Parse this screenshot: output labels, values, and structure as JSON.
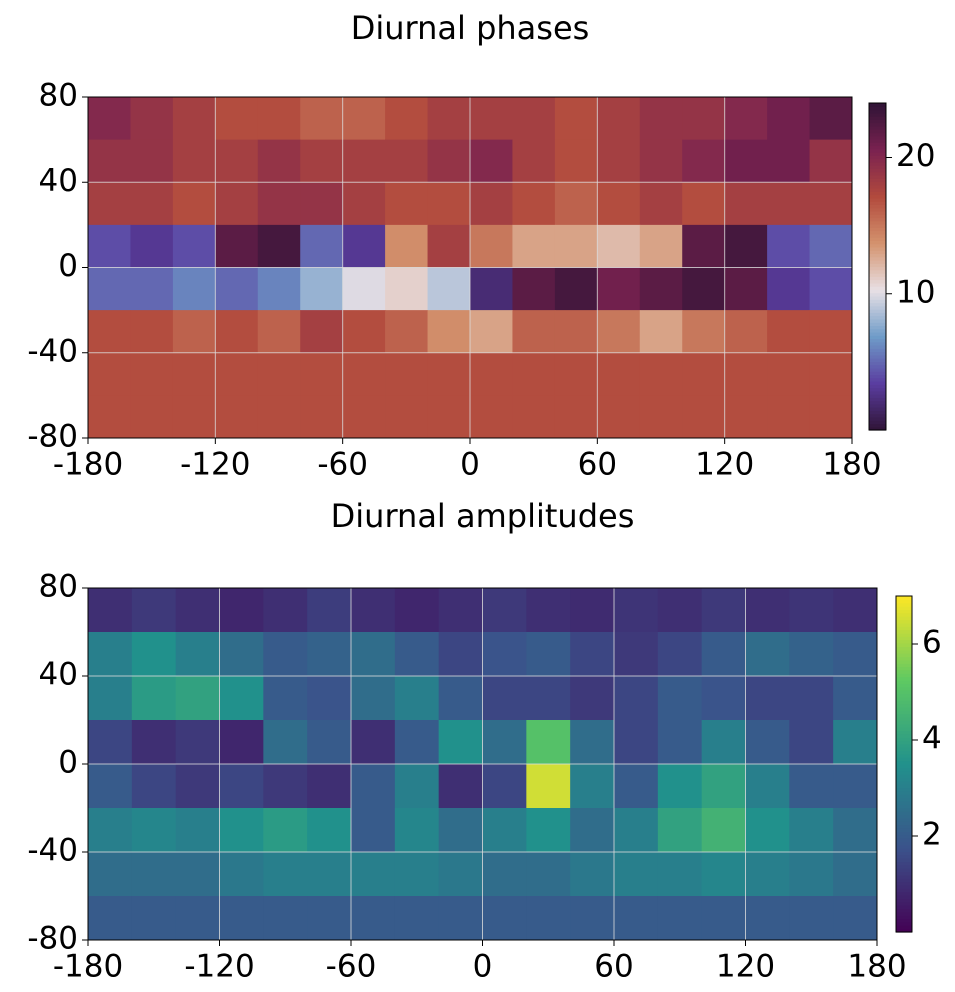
{
  "chart_data": [
    {
      "type": "heatmap",
      "title": "Diurnal phases",
      "xlim": [
        -180,
        180
      ],
      "ylim": [
        -80,
        80
      ],
      "xticks": [
        -180,
        -120,
        -60,
        0,
        60,
        120,
        180
      ],
      "yticks": [
        -80,
        -40,
        0,
        40,
        80
      ],
      "grid": true,
      "clim": [
        0,
        24
      ],
      "cbar_ticks": [
        10,
        20
      ],
      "colormap": [
        "#2f1436",
        "#5a3da0",
        "#6e9bc8",
        "#e8e0e5",
        "#d4936e",
        "#b24a3d",
        "#7a2250",
        "#2f1436"
      ],
      "z": [
        [
          20,
          19,
          18,
          17,
          17,
          16,
          16,
          17,
          18,
          18,
          18,
          17,
          18,
          19,
          19,
          20,
          21,
          22
        ],
        [
          19,
          19,
          18,
          18,
          19,
          18,
          18,
          18,
          19,
          20,
          18,
          17,
          18,
          19,
          20,
          21,
          21,
          19
        ],
        [
          18,
          18,
          17,
          18,
          19,
          19,
          18,
          17,
          17,
          18,
          17,
          16,
          17,
          18,
          17,
          18,
          18,
          18
        ],
        [
          4,
          3,
          4,
          22,
          23,
          5,
          3,
          14,
          18,
          15,
          13,
          13,
          12,
          13,
          22,
          23,
          4,
          5
        ],
        [
          5,
          5,
          6,
          5,
          6,
          8,
          10,
          11,
          9,
          2,
          22,
          23,
          21,
          22,
          23,
          22,
          3,
          4
        ],
        [
          17,
          17,
          16,
          17,
          16,
          18,
          17,
          16,
          14,
          13,
          16,
          16,
          15,
          13,
          15,
          16,
          17,
          17
        ],
        [
          17,
          17,
          17,
          17,
          17,
          17,
          17,
          17,
          17,
          17,
          17,
          17,
          17,
          17,
          17,
          17,
          17,
          17
        ],
        [
          17,
          17,
          17,
          17,
          17,
          17,
          17,
          17,
          17,
          17,
          17,
          17,
          17,
          17,
          17,
          17,
          17,
          17
        ]
      ]
    },
    {
      "type": "heatmap",
      "title": "Diurnal amplitudes",
      "xlim": [
        -180,
        180
      ],
      "ylim": [
        -80,
        80
      ],
      "xticks": [
        -180,
        -120,
        -60,
        0,
        60,
        120,
        180
      ],
      "yticks": [
        -80,
        -40,
        0,
        40,
        80
      ],
      "grid": true,
      "clim": [
        0,
        7
      ],
      "cbar_ticks": [
        2,
        4,
        6
      ],
      "colormap": [
        "#440154",
        "#3b528b",
        "#21918c",
        "#5ec962",
        "#fde725"
      ],
      "z": [
        [
          1,
          1.2,
          1,
          0.8,
          1,
          1.3,
          1,
          0.8,
          1,
          1.2,
          1,
          0.9,
          1.1,
          1,
          1.2,
          1,
          1.1,
          1
        ],
        [
          3,
          3.5,
          3,
          2.5,
          2,
          2.2,
          2.5,
          2,
          1.5,
          1.8,
          2,
          1.5,
          1.2,
          1.5,
          2,
          2.5,
          2.2,
          2
        ],
        [
          3,
          3.8,
          4,
          3.5,
          2,
          1.8,
          2.5,
          3,
          2,
          1.5,
          1.5,
          1.2,
          1.5,
          2,
          1.8,
          1.5,
          1.5,
          2
        ],
        [
          1.5,
          1,
          1.2,
          0.8,
          2.5,
          2,
          1,
          2,
          3.5,
          2.5,
          5,
          2.5,
          1.5,
          2,
          3,
          2,
          1.5,
          3
        ],
        [
          2,
          1.5,
          1.2,
          1.5,
          1.2,
          1,
          2,
          3,
          1,
          1.5,
          6.5,
          3,
          2,
          3.5,
          4,
          3,
          2,
          2
        ],
        [
          3,
          3.2,
          3,
          3.5,
          3.8,
          3.5,
          2,
          3.2,
          2.5,
          3,
          3.5,
          2.5,
          3,
          4,
          4.5,
          3.5,
          3,
          2.5
        ],
        [
          2.5,
          2.5,
          2.5,
          2.8,
          3,
          3,
          3,
          3,
          2.8,
          2.5,
          2.5,
          2.8,
          3,
          3,
          3.2,
          3,
          2.8,
          2.5
        ],
        [
          2,
          2,
          2,
          2,
          2,
          2,
          2,
          2,
          2,
          2,
          2,
          2,
          2,
          2,
          2,
          2,
          2,
          2
        ]
      ]
    }
  ]
}
